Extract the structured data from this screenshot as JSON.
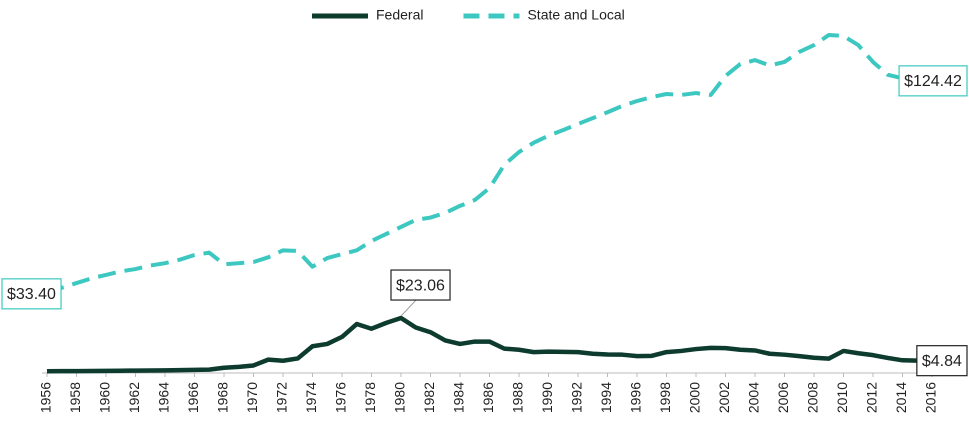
{
  "chart_data": {
    "type": "line",
    "x": [
      1956,
      1957,
      1958,
      1959,
      1960,
      1961,
      1962,
      1963,
      1964,
      1965,
      1966,
      1967,
      1968,
      1969,
      1970,
      1971,
      1972,
      1973,
      1974,
      1975,
      1976,
      1977,
      1978,
      1979,
      1980,
      1981,
      1982,
      1983,
      1984,
      1985,
      1986,
      1987,
      1988,
      1989,
      1990,
      1991,
      1992,
      1993,
      1994,
      1995,
      1996,
      1997,
      1998,
      1999,
      2000,
      2001,
      2002,
      2003,
      2004,
      2005,
      2006,
      2007,
      2008,
      2009,
      2010,
      2011,
      2012,
      2013,
      2014,
      2015
    ],
    "xlim": [
      1956,
      2016
    ],
    "xticks": [
      1956,
      1958,
      1960,
      1962,
      1964,
      1966,
      1968,
      1970,
      1972,
      1974,
      1976,
      1978,
      1980,
      1982,
      1984,
      1986,
      1988,
      1990,
      1992,
      1994,
      1996,
      1998,
      2000,
      2002,
      2004,
      2006,
      2008,
      2010,
      2012,
      2014,
      2016
    ],
    "ylim": [
      0,
      150
    ],
    "legend": "top",
    "series": [
      {
        "name": "Federal",
        "color": "#0d3b2e",
        "dash": false,
        "values": [
          0.3,
          0.35,
          0.4,
          0.45,
          0.5,
          0.55,
          0.6,
          0.65,
          0.7,
          0.8,
          0.9,
          1.0,
          1.8,
          2.2,
          2.8,
          5.3,
          4.8,
          5.8,
          11,
          12,
          15,
          20.5,
          18.5,
          21,
          23.06,
          19,
          17,
          13.5,
          12,
          13,
          13,
          10,
          9.5,
          8.5,
          8.7,
          8.6,
          8.5,
          7.8,
          7.5,
          7.4,
          6.8,
          6.9,
          8.5,
          9,
          9.8,
          10.3,
          10.2,
          9.5,
          9.2,
          7.8,
          7.4,
          6.8,
          6.1,
          5.7,
          9,
          8,
          7.2,
          6,
          5,
          4.84
        ],
        "value_labels": [
          "",
          null,
          null,
          null,
          null,
          null,
          null,
          null,
          null,
          null,
          null,
          null,
          null,
          null,
          null,
          null,
          null,
          null,
          null,
          null,
          null,
          null,
          null,
          null,
          "$23.06",
          null,
          null,
          null,
          null,
          null,
          null,
          null,
          null,
          null,
          null,
          null,
          null,
          null,
          null,
          null,
          null,
          null,
          null,
          null,
          null,
          null,
          null,
          null,
          null,
          null,
          null,
          null,
          null,
          null,
          null,
          null,
          null,
          null,
          null,
          "$4.84"
        ]
      },
      {
        "name": "State and Local",
        "color": "#3cc8c0",
        "dash": true,
        "values": [
          33.4,
          36,
          38,
          40,
          41.5,
          43,
          44,
          45.5,
          46.5,
          48,
          50,
          51,
          46,
          46.5,
          47,
          49,
          52,
          51.7,
          45,
          48.7,
          50.4,
          52,
          56,
          59,
          62,
          65,
          66,
          68,
          71,
          73.5,
          78.6,
          88.5,
          94,
          98,
          101,
          103.4,
          106,
          108.5,
          111,
          113.7,
          115.8,
          117.5,
          118.8,
          118.4,
          119.2,
          118.4,
          126.5,
          131.6,
          133.3,
          131,
          132.5,
          136.8,
          139.7,
          144,
          143.6,
          139.7,
          132.5,
          127,
          125.5,
          124.42
        ],
        "value_labels": [
          "$33.40",
          null,
          null,
          null,
          null,
          null,
          null,
          null,
          null,
          null,
          null,
          null,
          null,
          null,
          null,
          null,
          null,
          null,
          null,
          null,
          null,
          null,
          null,
          null,
          null,
          null,
          null,
          null,
          null,
          null,
          null,
          null,
          null,
          null,
          null,
          null,
          null,
          null,
          null,
          null,
          null,
          null,
          null,
          null,
          null,
          null,
          null,
          null,
          null,
          null,
          null,
          null,
          null,
          null,
          null,
          null,
          null,
          null,
          null,
          "$124.42"
        ]
      }
    ]
  }
}
